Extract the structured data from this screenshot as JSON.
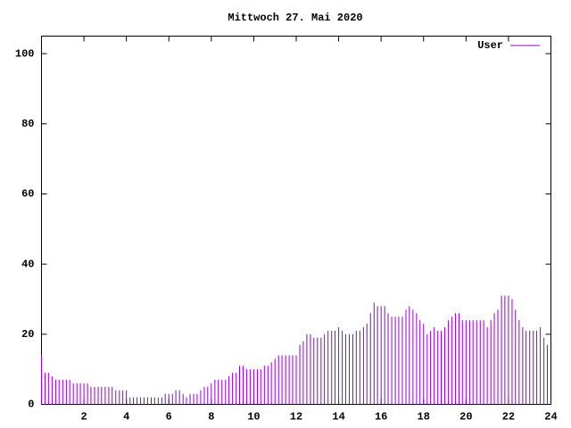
{
  "chart_data": {
    "type": "impulses",
    "title": "Mittwoch 27. Mai 2020",
    "xlim": [
      0,
      24
    ],
    "xticks": [
      2,
      4,
      6,
      8,
      10,
      12,
      14,
      16,
      18,
      20,
      22,
      24
    ],
    "ylim": [
      0,
      105
    ],
    "yticks": [
      0,
      20,
      40,
      60,
      80,
      100
    ],
    "legend": "top-right",
    "x": [
      0,
      0.17,
      0.33,
      0.5,
      0.67,
      0.83,
      1,
      1.17,
      1.33,
      1.5,
      1.67,
      1.83,
      2,
      2.17,
      2.33,
      2.5,
      2.67,
      2.83,
      3,
      3.17,
      3.33,
      3.5,
      3.67,
      3.83,
      4,
      4.17,
      4.33,
      4.5,
      4.67,
      4.83,
      5,
      5.17,
      5.33,
      5.5,
      5.67,
      5.83,
      6,
      6.17,
      6.33,
      6.5,
      6.67,
      6.83,
      7,
      7.17,
      7.33,
      7.5,
      7.67,
      7.83,
      8,
      8.17,
      8.33,
      8.5,
      8.67,
      8.83,
      9,
      9.17,
      9.33,
      9.5,
      9.67,
      9.83,
      10,
      10.17,
      10.33,
      10.5,
      10.67,
      10.83,
      11,
      11.17,
      11.33,
      11.5,
      11.67,
      11.83,
      12,
      12.17,
      12.33,
      12.5,
      12.67,
      12.83,
      13,
      13.17,
      13.33,
      13.5,
      13.67,
      13.83,
      14,
      14.17,
      14.33,
      14.5,
      14.67,
      14.83,
      15,
      15.17,
      15.33,
      15.5,
      15.67,
      15.83,
      16,
      16.17,
      16.33,
      16.5,
      16.67,
      16.83,
      17,
      17.17,
      17.33,
      17.5,
      17.67,
      17.83,
      18,
      18.17,
      18.33,
      18.5,
      18.67,
      18.83,
      19,
      19.17,
      19.33,
      19.5,
      19.67,
      19.83,
      20,
      20.17,
      20.33,
      20.5,
      20.67,
      20.83,
      21,
      21.17,
      21.33,
      21.5,
      21.67,
      21.83,
      22,
      22.17,
      22.33,
      22.5,
      22.67,
      22.83,
      23,
      23.17,
      23.33,
      23.5,
      23.67,
      23.83
    ],
    "series": [
      {
        "name": "User",
        "color": "#9400d3",
        "values": [
          14,
          9,
          9,
          8,
          7,
          7,
          7,
          7,
          7,
          6,
          6,
          6,
          6,
          6,
          5,
          5,
          5,
          5,
          5,
          5,
          5,
          4,
          4,
          4,
          4,
          2,
          2,
          2,
          2,
          2,
          2,
          2,
          2,
          2,
          2,
          3,
          3,
          3,
          4,
          4,
          3,
          2,
          3,
          3,
          3,
          4,
          5,
          5,
          6,
          7,
          7,
          7,
          7,
          8,
          9,
          9,
          11,
          11,
          10,
          10,
          10,
          10,
          10,
          11,
          11,
          12,
          13,
          14,
          14,
          14,
          14,
          14,
          14,
          17,
          18,
          20,
          20,
          19,
          19,
          19,
          20,
          21,
          21,
          21,
          22,
          21,
          20,
          20,
          20,
          21,
          21,
          22,
          23,
          26,
          29,
          28,
          28,
          28,
          26,
          25,
          25,
          25,
          25,
          27,
          28,
          27,
          26,
          24,
          23,
          20,
          21,
          22,
          21,
          21,
          22,
          24,
          25,
          26,
          26,
          24,
          24,
          24,
          24,
          24,
          24,
          24,
          22,
          24,
          26,
          27,
          31,
          31,
          31,
          30,
          27,
          24,
          22,
          21,
          21,
          21,
          21,
          22,
          19,
          17
        ]
      }
    ]
  }
}
